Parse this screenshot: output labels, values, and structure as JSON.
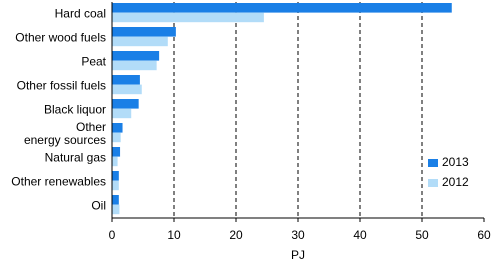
{
  "chart_data": {
    "type": "hbar",
    "categories": [
      "Hard coal",
      "Other wood fuels",
      "Peat",
      "Other fossil fuels",
      "Black liquor",
      "Other\nenergy sources",
      "Natural gas",
      "Other renewables",
      "Oil"
    ],
    "series": [
      {
        "name": "2013",
        "color": "#1a7fe6",
        "values": [
          54.8,
          10.3,
          7.6,
          4.5,
          4.3,
          1.7,
          1.3,
          1.1,
          1.1
        ]
      },
      {
        "name": "2012",
        "color": "#b2dcf8",
        "values": [
          24.5,
          9.0,
          7.2,
          4.8,
          3.1,
          1.4,
          0.9,
          1.1,
          1.2
        ]
      }
    ],
    "xlabel": "PJ",
    "xlim": [
      0,
      60
    ],
    "xticks": [
      0,
      10,
      20,
      30,
      40,
      50,
      60
    ],
    "grid": true
  }
}
